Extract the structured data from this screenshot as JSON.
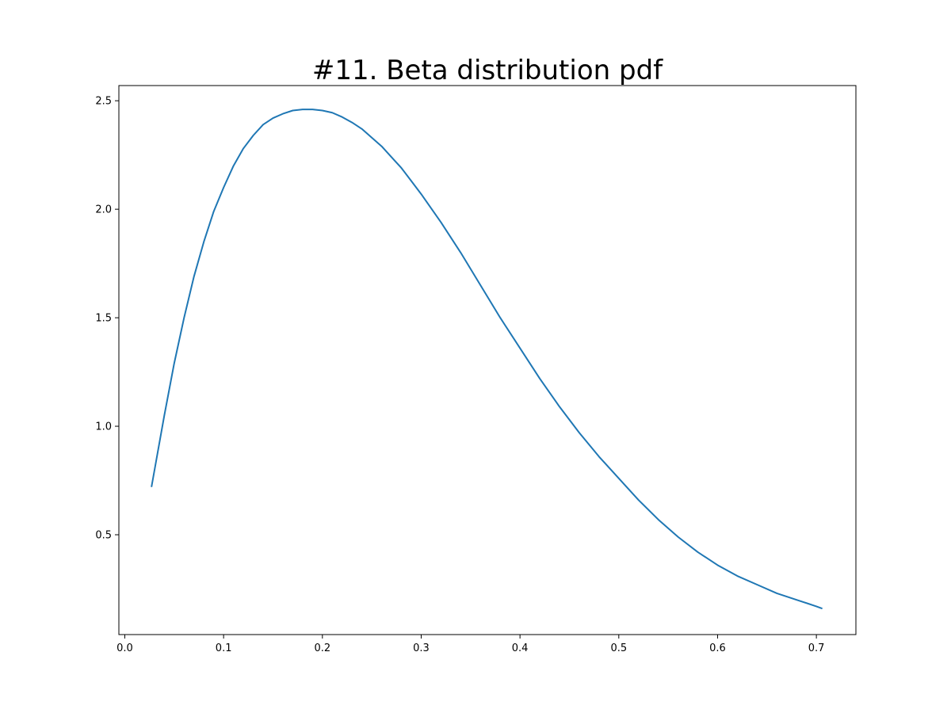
{
  "chart_data": {
    "type": "line",
    "title": "#11. Beta distribution pdf",
    "xlabel": "",
    "ylabel": "",
    "xlim": [
      -0.006,
      0.74
    ],
    "ylim": [
      0.04,
      2.57
    ],
    "xticks": [
      {
        "value": 0.0,
        "label": "0.0"
      },
      {
        "value": 0.1,
        "label": "0.1"
      },
      {
        "value": 0.2,
        "label": "0.2"
      },
      {
        "value": 0.3,
        "label": "0.3"
      },
      {
        "value": 0.4,
        "label": "0.4"
      },
      {
        "value": 0.5,
        "label": "0.5"
      },
      {
        "value": 0.6,
        "label": "0.6"
      },
      {
        "value": 0.7,
        "label": "0.7"
      }
    ],
    "yticks": [
      {
        "value": 0.5,
        "label": "0.5"
      },
      {
        "value": 1.0,
        "label": "1.0"
      },
      {
        "value": 1.5,
        "label": "1.5"
      },
      {
        "value": 2.0,
        "label": "2.0"
      },
      {
        "value": 2.5,
        "label": "2.5"
      }
    ],
    "grid": false,
    "legend": "none",
    "series": [
      {
        "color": "#1f77b4",
        "x": [
          0.027,
          0.04,
          0.05,
          0.06,
          0.07,
          0.08,
          0.09,
          0.1,
          0.11,
          0.12,
          0.13,
          0.14,
          0.15,
          0.16,
          0.17,
          0.18,
          0.19,
          0.2,
          0.21,
          0.22,
          0.23,
          0.24,
          0.25,
          0.26,
          0.27,
          0.28,
          0.29,
          0.3,
          0.32,
          0.34,
          0.36,
          0.38,
          0.4,
          0.42,
          0.44,
          0.46,
          0.48,
          0.5,
          0.52,
          0.54,
          0.56,
          0.58,
          0.6,
          0.62,
          0.64,
          0.66,
          0.68,
          0.7,
          0.706
        ],
        "y": [
          0.72,
          1.05,
          1.29,
          1.5,
          1.69,
          1.85,
          1.99,
          2.1,
          2.2,
          2.28,
          2.34,
          2.39,
          2.42,
          2.44,
          2.455,
          2.46,
          2.46,
          2.455,
          2.445,
          2.425,
          2.4,
          2.37,
          2.33,
          2.29,
          2.24,
          2.19,
          2.13,
          2.07,
          1.94,
          1.8,
          1.65,
          1.5,
          1.36,
          1.22,
          1.09,
          0.97,
          0.86,
          0.76,
          0.66,
          0.57,
          0.49,
          0.42,
          0.36,
          0.31,
          0.27,
          0.23,
          0.2,
          0.17,
          0.16
        ]
      }
    ]
  }
}
